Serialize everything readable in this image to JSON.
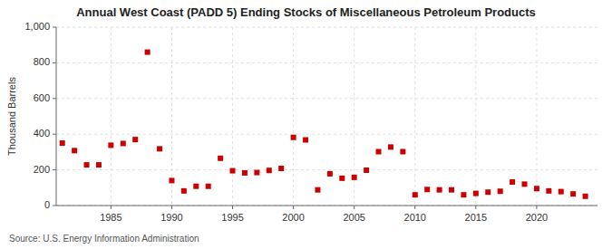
{
  "chart_data": {
    "type": "scatter",
    "title": "Annual West Coast (PADD 5) Ending Stocks of Miscellaneous Petroleum Products",
    "ylabel": "Thousand Barrels",
    "source": "Source: U.S. Energy Information Administration",
    "x": [
      1981,
      1982,
      1983,
      1984,
      1985,
      1986,
      1987,
      1988,
      1989,
      1990,
      1991,
      1992,
      1993,
      1994,
      1995,
      1996,
      1997,
      1998,
      1999,
      2000,
      2001,
      2002,
      2003,
      2004,
      2005,
      2006,
      2007,
      2008,
      2009,
      2010,
      2011,
      2012,
      2013,
      2014,
      2015,
      2016,
      2017,
      2018,
      2019,
      2020,
      2021,
      2022,
      2023,
      2024
    ],
    "values": [
      350,
      308,
      228,
      228,
      338,
      348,
      370,
      860,
      318,
      140,
      82,
      108,
      108,
      265,
      195,
      183,
      185,
      197,
      208,
      382,
      368,
      88,
      178,
      153,
      158,
      198,
      302,
      328,
      302,
      60,
      90,
      88,
      88,
      60,
      68,
      75,
      80,
      132,
      120,
      95,
      82,
      78,
      65,
      52
    ],
    "color": "#cc0000",
    "marker": "square",
    "xlim": [
      1980.5,
      2025
    ],
    "xticks": [
      1985,
      1990,
      1995,
      2000,
      2005,
      2010,
      2015,
      2020
    ],
    "ylim": [
      0,
      1000
    ],
    "yticks": [
      0,
      200,
      400,
      600,
      800,
      {
        "value": 1000,
        "label": "1,000"
      }
    ],
    "grid": true
  }
}
